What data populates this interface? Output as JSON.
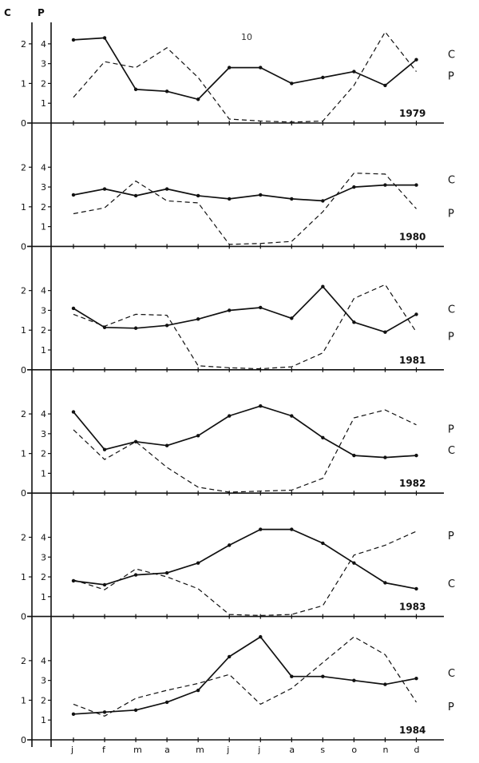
{
  "page_number": "10",
  "axis_left_label": "C",
  "axis_right_label": "P",
  "chart_data": {
    "type": "line",
    "categories": [
      "j",
      "f",
      "m",
      "a",
      "m",
      "j",
      "j",
      "a",
      "s",
      "o",
      "n",
      "d"
    ],
    "c_ticks": [
      "0",
      "1",
      "2"
    ],
    "p_ticks": [
      "1",
      "2",
      "3",
      "4"
    ],
    "c_ylim": [
      0,
      2.3
    ],
    "p_ylim": [
      0,
      4.6
    ],
    "grid": false,
    "legend": "inline at line ends",
    "panels": [
      {
        "year": "1979",
        "series": [
          {
            "name": "C",
            "values": [
              2.1,
              2.15,
              0.85,
              0.8,
              0.6,
              1.4,
              1.4,
              1.0,
              1.15,
              1.3,
              0.95,
              1.6
            ]
          },
          {
            "name": "P",
            "values": [
              1.3,
              3.1,
              2.8,
              3.8,
              2.3,
              0.2,
              0.1,
              0.05,
              0.1,
              1.9,
              4.6,
              2.6
            ]
          }
        ]
      },
      {
        "year": "1980",
        "series": [
          {
            "name": "C",
            "values": [
              1.3,
              1.45,
              1.28,
              1.45,
              1.28,
              1.2,
              1.3,
              1.2,
              1.15,
              1.5,
              1.55,
              1.55
            ]
          },
          {
            "name": "P",
            "values": [
              1.65,
              1.95,
              3.3,
              2.3,
              2.2,
              0.1,
              0.15,
              0.25,
              1.75,
              3.7,
              3.65,
              1.9
            ]
          }
        ]
      },
      {
        "year": "1981",
        "series": [
          {
            "name": "C",
            "values": [
              1.55,
              1.07,
              1.05,
              1.12,
              1.28,
              1.5,
              1.57,
              1.3,
              2.1,
              1.2,
              0.95,
              1.4
            ]
          },
          {
            "name": "P",
            "values": [
              2.8,
              2.2,
              2.8,
              2.75,
              0.2,
              0.1,
              0.05,
              0.15,
              0.85,
              3.6,
              4.3,
              1.9
            ]
          }
        ]
      },
      {
        "year": "1982",
        "series": [
          {
            "name": "C",
            "values": [
              2.05,
              1.1,
              1.3,
              1.2,
              1.45,
              1.95,
              2.2,
              1.95,
              1.4,
              0.95,
              0.9,
              0.95
            ]
          },
          {
            "name": "P",
            "values": [
              3.2,
              1.7,
              2.6,
              1.3,
              0.3,
              0.05,
              0.1,
              0.15,
              0.75,
              3.8,
              4.2,
              3.45
            ]
          }
        ]
      },
      {
        "year": "1983",
        "series": [
          {
            "name": "C",
            "values": [
              0.9,
              0.8,
              1.05,
              1.1,
              1.35,
              1.8,
              2.2,
              2.2,
              1.85,
              1.35,
              0.85,
              0.7
            ]
          },
          {
            "name": "P",
            "values": [
              1.85,
              1.35,
              2.4,
              2.0,
              1.4,
              0.1,
              0.05,
              0.1,
              0.55,
              3.1,
              3.6,
              4.3
            ]
          }
        ]
      },
      {
        "year": "1984",
        "series": [
          {
            "name": "C",
            "values": [
              0.65,
              0.7,
              0.75,
              0.95,
              1.25,
              2.1,
              2.6,
              1.6,
              1.6,
              1.5,
              1.4,
              1.55
            ]
          },
          {
            "name": "P",
            "values": [
              1.8,
              1.2,
              2.1,
              2.5,
              2.85,
              3.3,
              1.8,
              2.6,
              3.9,
              5.2,
              4.3,
              1.9
            ]
          }
        ]
      }
    ]
  }
}
